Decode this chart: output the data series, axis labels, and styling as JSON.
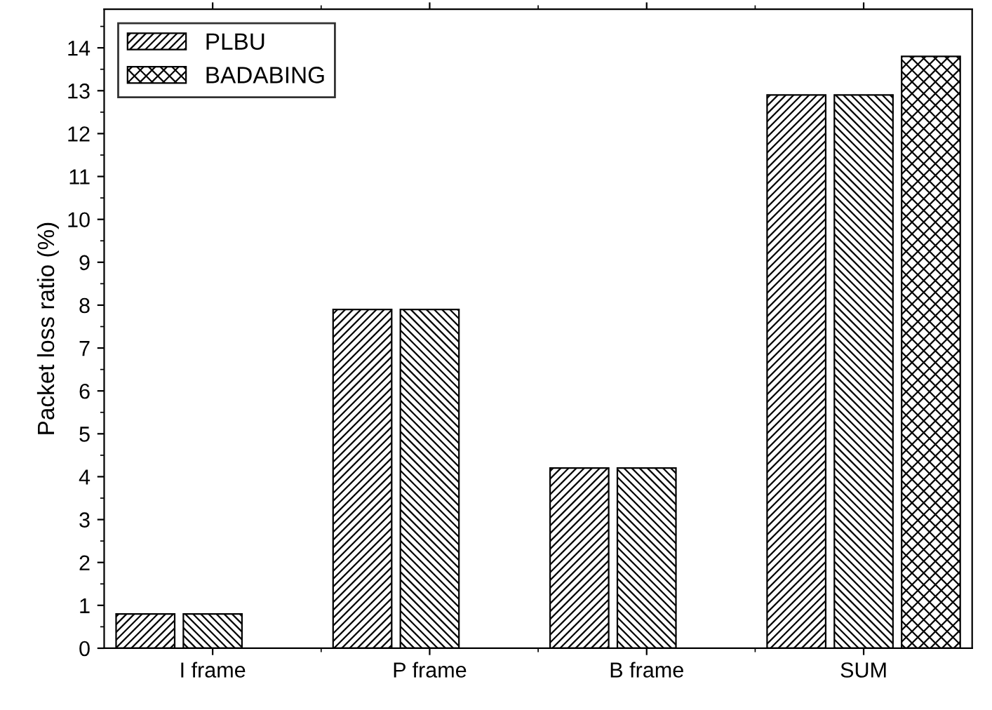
{
  "chart_data": {
    "type": "bar",
    "ylabel": "Packet loss ratio (%)",
    "categories": [
      "I frame",
      "P frame",
      "B frame",
      "SUM"
    ],
    "series": [
      {
        "name": "PLBU",
        "color": "#000000",
        "values": [
          0.8,
          7.9,
          4.2,
          12.9
        ]
      },
      {
        "color": "#000000",
        "values": [
          0.8,
          7.9,
          4.2,
          12.9
        ]
      },
      {
        "name": "BADABING",
        "color": "#000000",
        "values": [
          null,
          null,
          null,
          13.8
        ]
      }
    ],
    "ylim": [
      0,
      14.9
    ],
    "yticks": [
      0,
      1,
      2,
      3,
      4,
      5,
      6,
      7,
      8,
      9,
      10,
      11,
      12,
      13,
      14
    ],
    "grid": false,
    "legend": "top left"
  }
}
